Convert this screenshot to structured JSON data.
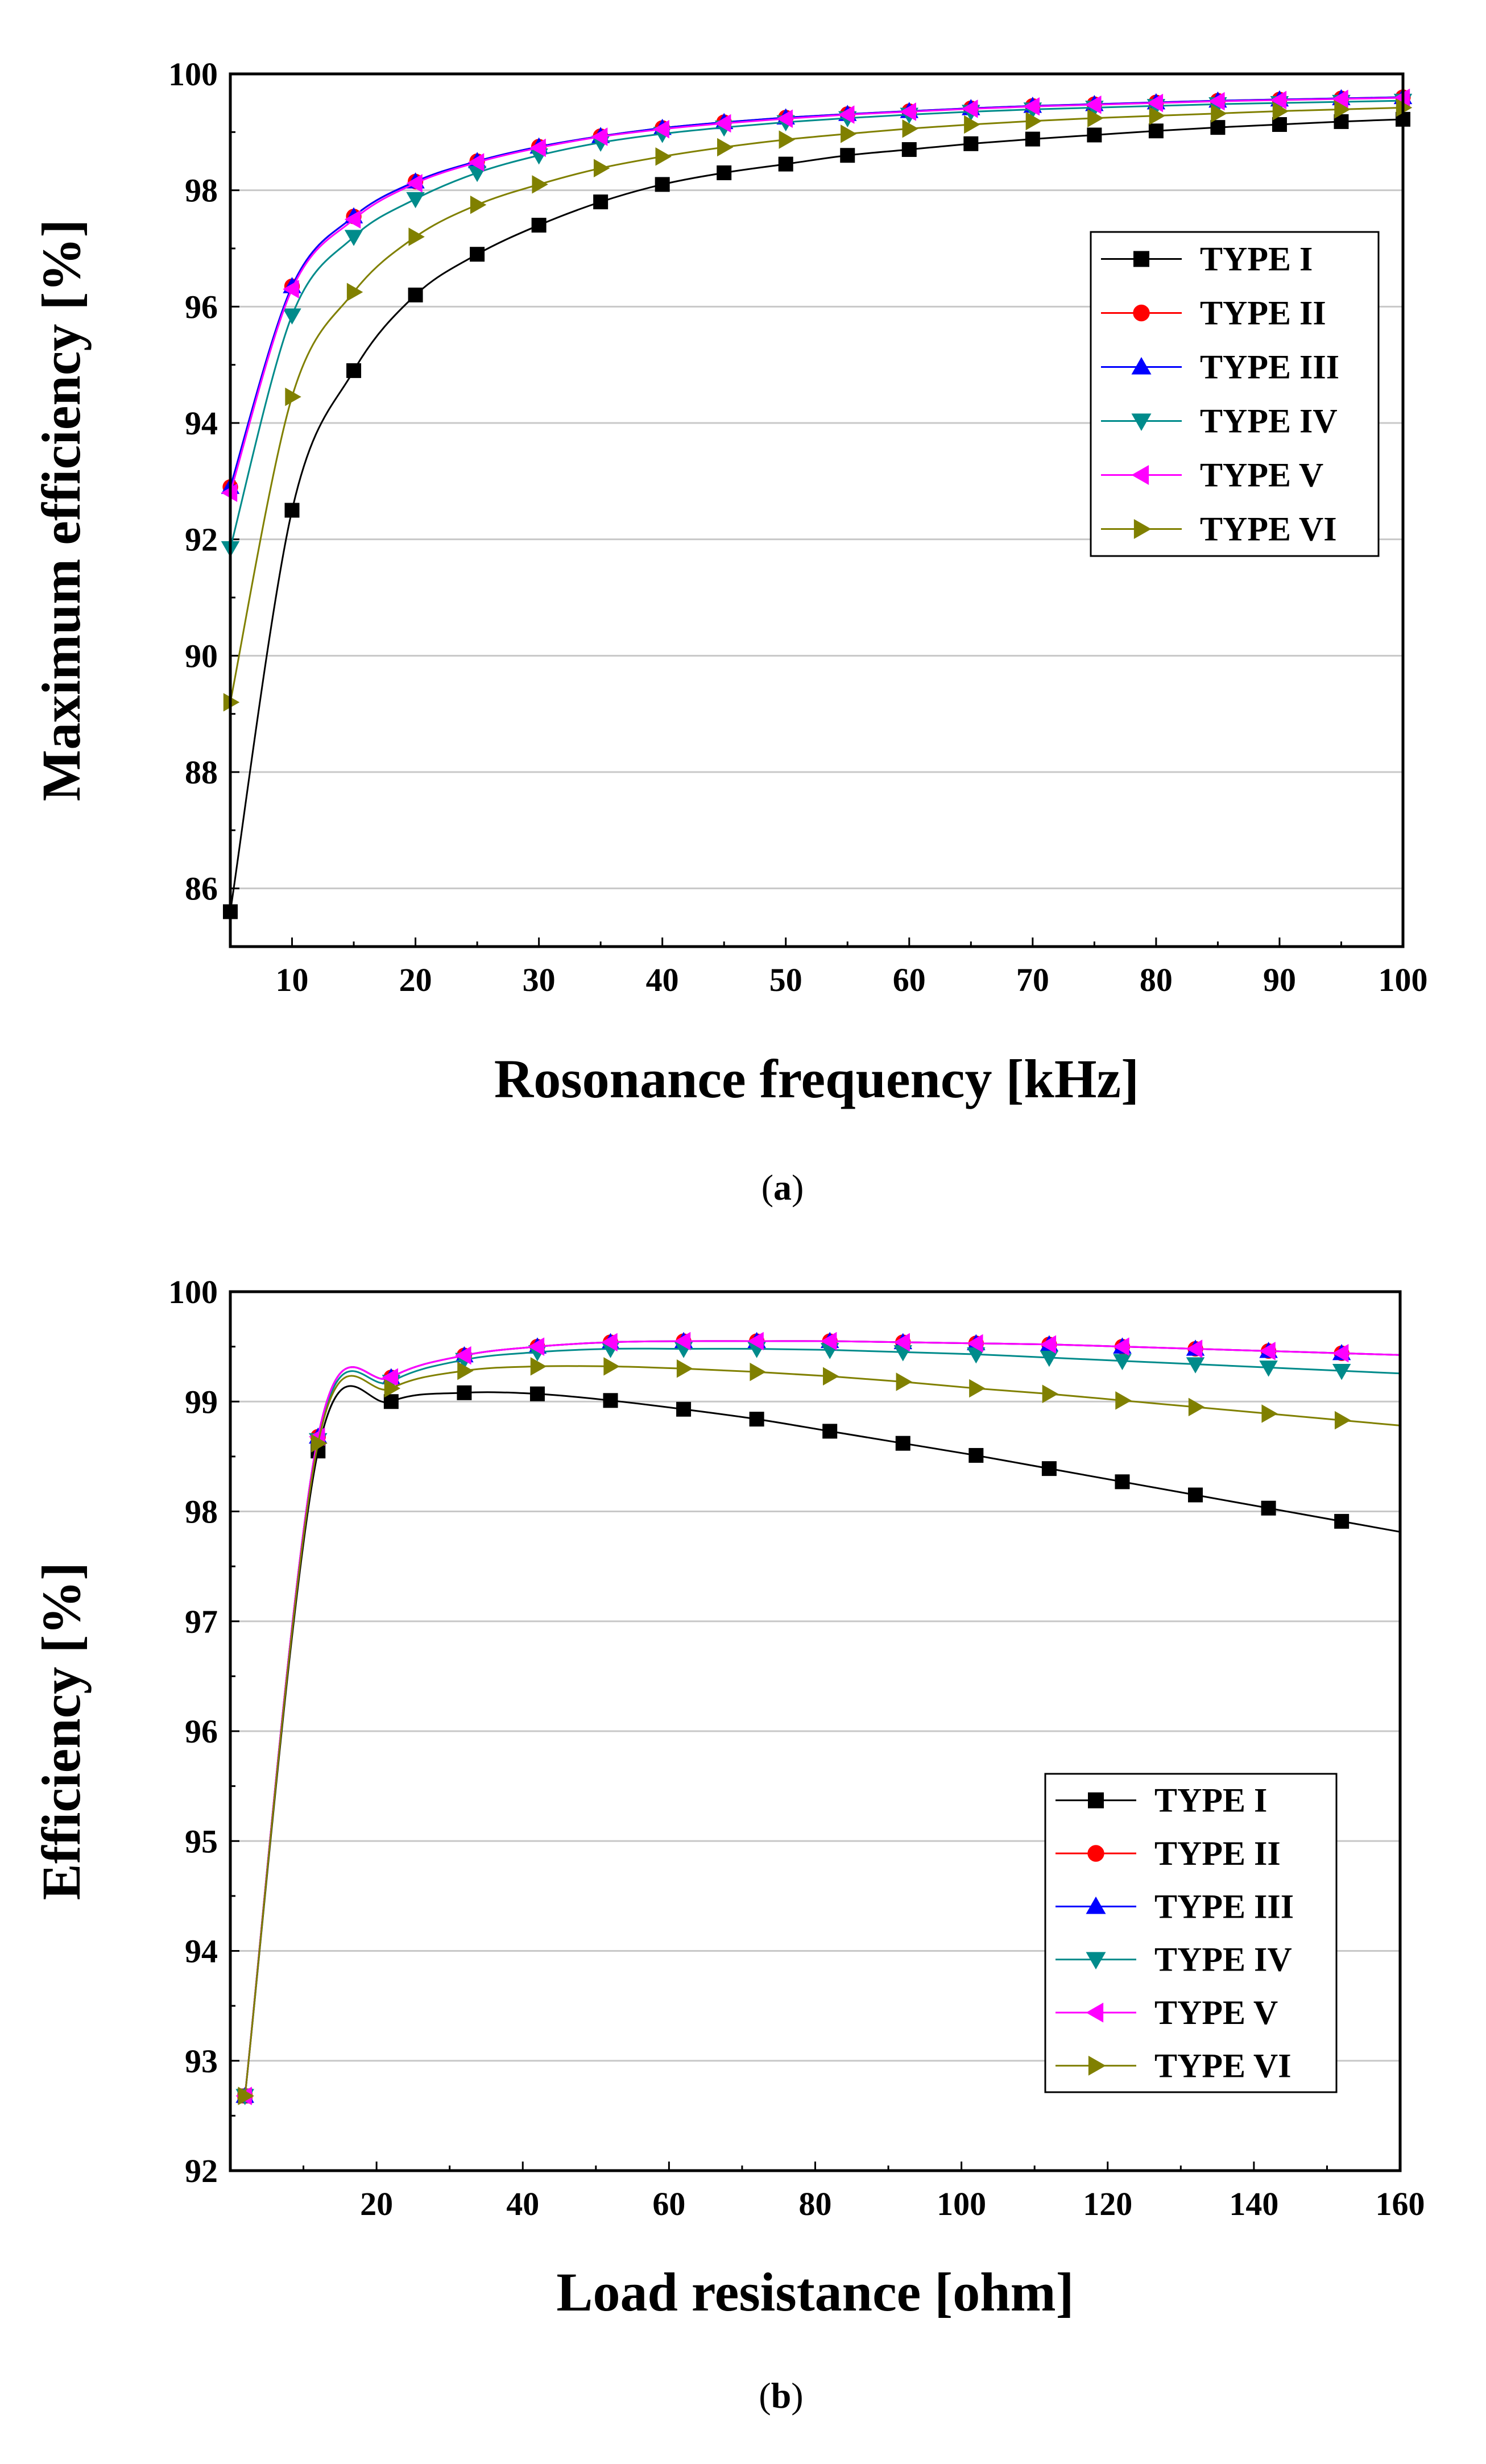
{
  "colors": {
    "type1": "#000000",
    "type2": "#ff0000",
    "type3": "#0000ff",
    "type4": "#008b8b",
    "type5": "#ff00ff",
    "type6": "#808000",
    "grid": "#c8c8c8",
    "frame": "#000000"
  },
  "chart_data": [
    {
      "id": "a",
      "type": "line",
      "caption_letter": "a",
      "xlabel": "Rosonance frequency [kHz]",
      "ylabel": "Maximum efficiency [%]",
      "xlim": [
        5,
        100
      ],
      "ylim": [
        85,
        100
      ],
      "xticks": [
        10,
        20,
        30,
        40,
        50,
        60,
        70,
        80,
        90,
        100
      ],
      "yticks": [
        86,
        88,
        90,
        92,
        94,
        96,
        98,
        100
      ],
      "grid": true,
      "legend_position": "upper-right",
      "x": [
        5,
        10,
        15,
        20,
        25,
        30,
        35,
        40,
        45,
        50,
        55,
        60,
        65,
        70,
        75,
        80,
        85,
        90,
        95,
        100
      ],
      "series": [
        {
          "name": "TYPE I",
          "marker": "square",
          "color_key": "type1",
          "values": [
            85.6,
            92.5,
            94.9,
            96.2,
            96.9,
            97.4,
            97.8,
            98.1,
            98.3,
            98.45,
            98.6,
            98.7,
            98.8,
            98.88,
            98.95,
            99.02,
            99.08,
            99.13,
            99.18,
            99.22
          ]
        },
        {
          "name": "TYPE II",
          "marker": "circle",
          "color_key": "type2",
          "values": [
            92.9,
            96.35,
            97.55,
            98.15,
            98.5,
            98.75,
            98.93,
            99.07,
            99.17,
            99.25,
            99.31,
            99.36,
            99.41,
            99.45,
            99.48,
            99.51,
            99.54,
            99.56,
            99.58,
            99.6
          ]
        },
        {
          "name": "TYPE III",
          "marker": "triangle-up",
          "color_key": "type3",
          "values": [
            92.9,
            96.35,
            97.55,
            98.15,
            98.5,
            98.75,
            98.93,
            99.07,
            99.17,
            99.25,
            99.31,
            99.36,
            99.41,
            99.45,
            99.48,
            99.51,
            99.54,
            99.56,
            99.58,
            99.6
          ]
        },
        {
          "name": "TYPE IV",
          "marker": "triangle-down",
          "color_key": "type4",
          "values": [
            91.85,
            95.85,
            97.2,
            97.85,
            98.3,
            98.6,
            98.82,
            98.97,
            99.08,
            99.17,
            99.24,
            99.3,
            99.35,
            99.39,
            99.42,
            99.45,
            99.48,
            99.5,
            99.52,
            99.54
          ]
        },
        {
          "name": "TYPE V",
          "marker": "triangle-left",
          "color_key": "type5",
          "values": [
            92.8,
            96.3,
            97.5,
            98.12,
            98.48,
            98.73,
            98.92,
            99.05,
            99.15,
            99.23,
            99.3,
            99.35,
            99.4,
            99.44,
            99.47,
            99.5,
            99.53,
            99.55,
            99.57,
            99.59
          ]
        },
        {
          "name": "TYPE VI",
          "marker": "triangle-right",
          "color_key": "type6",
          "values": [
            89.2,
            94.45,
            96.25,
            97.2,
            97.75,
            98.1,
            98.38,
            98.58,
            98.74,
            98.87,
            98.97,
            99.06,
            99.13,
            99.19,
            99.24,
            99.28,
            99.32,
            99.36,
            99.39,
            99.42
          ]
        }
      ]
    },
    {
      "id": "b",
      "type": "line",
      "caption_letter": "b",
      "xlabel": "Load resistance [ohm]",
      "ylabel": "Efficiency [%]",
      "xlim": [
        0,
        160
      ],
      "ylim": [
        92,
        100
      ],
      "xticks": [
        20,
        40,
        60,
        80,
        100,
        120,
        140,
        160
      ],
      "yticks": [
        92,
        93,
        94,
        95,
        96,
        97,
        98,
        99,
        100
      ],
      "grid": true,
      "legend_position": "lower-right",
      "x": [
        2,
        12,
        22,
        32,
        42,
        52,
        62,
        72,
        82,
        92,
        102,
        112,
        122,
        132,
        142,
        152
      ],
      "series": [
        {
          "name": "TYPE I",
          "marker": "square",
          "color_key": "type1",
          "values": [
            92.68,
            98.55,
            99.0,
            99.08,
            99.07,
            99.01,
            98.93,
            98.84,
            98.73,
            98.62,
            98.51,
            98.39,
            98.27,
            98.15,
            98.03,
            97.91
          ]
        },
        {
          "name": "TYPE II",
          "marker": "circle",
          "color_key": "type2",
          "values": [
            92.68,
            98.68,
            99.22,
            99.42,
            99.5,
            99.54,
            99.55,
            99.55,
            99.55,
            99.54,
            99.53,
            99.52,
            99.5,
            99.48,
            99.46,
            99.44
          ]
        },
        {
          "name": "TYPE III",
          "marker": "triangle-up",
          "color_key": "type3",
          "values": [
            92.68,
            98.68,
            99.22,
            99.42,
            99.5,
            99.54,
            99.55,
            99.55,
            99.55,
            99.54,
            99.53,
            99.52,
            99.5,
            99.48,
            99.46,
            99.44
          ]
        },
        {
          "name": "TYPE IV",
          "marker": "triangle-down",
          "color_key": "type4",
          "values": [
            92.68,
            98.65,
            99.18,
            99.38,
            99.45,
            99.48,
            99.48,
            99.48,
            99.47,
            99.45,
            99.43,
            99.4,
            99.37,
            99.34,
            99.31,
            99.28
          ]
        },
        {
          "name": "TYPE V",
          "marker": "triangle-left",
          "color_key": "type5",
          "values": [
            92.68,
            98.68,
            99.22,
            99.42,
            99.5,
            99.54,
            99.55,
            99.55,
            99.55,
            99.54,
            99.53,
            99.52,
            99.5,
            99.48,
            99.46,
            99.44
          ]
        },
        {
          "name": "TYPE VI",
          "marker": "triangle-right",
          "color_key": "type6",
          "values": [
            92.68,
            98.62,
            99.12,
            99.28,
            99.32,
            99.32,
            99.3,
            99.27,
            99.23,
            99.18,
            99.12,
            99.07,
            99.01,
            98.95,
            98.89,
            98.83
          ]
        }
      ]
    }
  ]
}
